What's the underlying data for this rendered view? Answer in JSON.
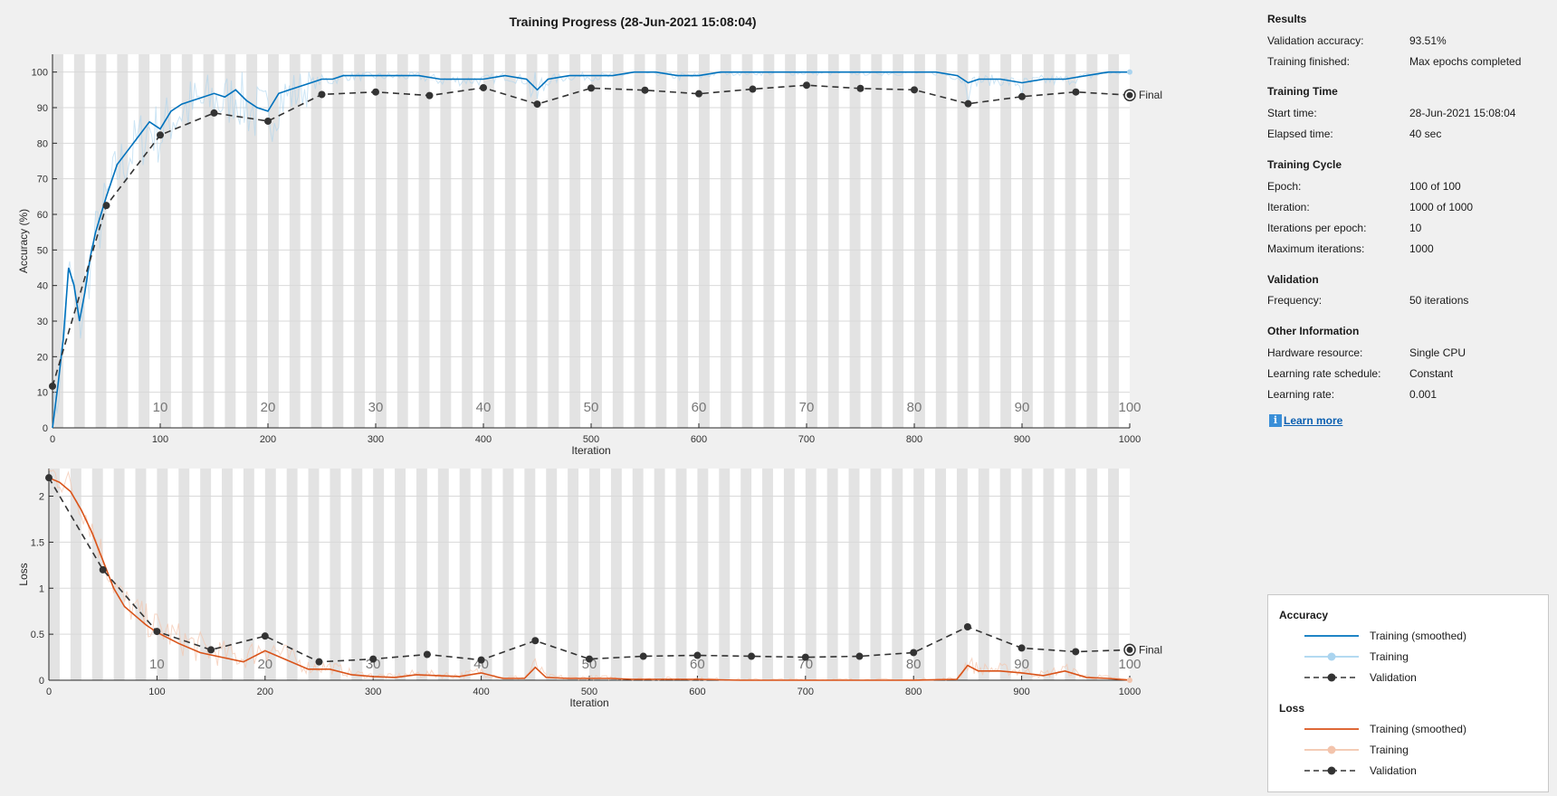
{
  "title": "Training Progress (28-Jun-2021 15:08:04)",
  "chart_data": [
    {
      "type": "line",
      "id": "accuracy",
      "ylabel": "Accuracy (%)",
      "xlabel": "Iteration",
      "xlim": [
        0,
        1000
      ],
      "ylim": [
        0,
        105
      ],
      "xticks": [
        0,
        100,
        200,
        300,
        400,
        500,
        600,
        700,
        800,
        900,
        1000
      ],
      "yticks": [
        0,
        10,
        20,
        30,
        40,
        50,
        60,
        70,
        80,
        90,
        100
      ],
      "epoch_labels": [
        "10",
        "20",
        "30",
        "40",
        "50",
        "60",
        "70",
        "80",
        "90",
        "100"
      ],
      "final_label": "Final",
      "series": [
        {
          "name": "Training (smoothed)",
          "x": [
            0,
            5,
            10,
            15,
            20,
            25,
            30,
            35,
            40,
            45,
            50,
            60,
            70,
            80,
            90,
            100,
            110,
            120,
            130,
            140,
            150,
            160,
            170,
            180,
            190,
            200,
            210,
            220,
            230,
            240,
            250,
            260,
            270,
            280,
            290,
            300,
            320,
            340,
            360,
            380,
            400,
            420,
            440,
            450,
            460,
            480,
            500,
            520,
            540,
            560,
            580,
            600,
            620,
            640,
            660,
            680,
            700,
            720,
            740,
            760,
            780,
            800,
            820,
            840,
            850,
            860,
            880,
            900,
            920,
            940,
            960,
            980,
            1000
          ],
          "values": [
            0,
            12,
            25,
            45,
            40,
            30,
            38,
            48,
            55,
            60,
            65,
            74,
            78,
            82,
            86,
            84,
            89,
            91,
            92,
            93,
            94,
            93,
            95,
            92,
            90,
            89,
            94,
            95,
            96,
            97,
            98,
            98,
            99,
            99,
            99,
            99,
            99,
            99,
            98,
            98,
            98,
            99,
            98,
            95,
            98,
            99,
            99,
            99,
            100,
            100,
            99,
            99,
            100,
            100,
            100,
            100,
            100,
            100,
            100,
            100,
            100,
            100,
            100,
            99,
            97,
            98,
            98,
            97,
            98,
            98,
            99,
            100,
            100
          ]
        },
        {
          "name": "Validation",
          "x": [
            0,
            50,
            100,
            150,
            200,
            250,
            300,
            350,
            400,
            450,
            500,
            550,
            600,
            650,
            700,
            750,
            800,
            850,
            900,
            950,
            1000
          ],
          "values": [
            11.7,
            62.5,
            82.3,
            88.5,
            86.2,
            93.7,
            94.4,
            93.4,
            95.6,
            91.0,
            95.5,
            94.9,
            93.9,
            95.2,
            96.3,
            95.4,
            95.0,
            91.1,
            93.1,
            94.4,
            93.51
          ]
        }
      ]
    },
    {
      "type": "line",
      "id": "loss",
      "ylabel": "Loss",
      "xlabel": "Iteration",
      "xlim": [
        0,
        1000
      ],
      "ylim": [
        0,
        2.3
      ],
      "xticks": [
        0,
        100,
        200,
        300,
        400,
        500,
        600,
        700,
        800,
        900,
        1000
      ],
      "yticks": [
        0,
        0.5,
        1,
        1.5,
        2
      ],
      "epoch_labels": [
        "10",
        "20",
        "30",
        "40",
        "50",
        "60",
        "70",
        "80",
        "90",
        "100"
      ],
      "final_label": "Final",
      "series": [
        {
          "name": "Training (smoothed)",
          "x": [
            0,
            10,
            20,
            30,
            40,
            50,
            60,
            70,
            80,
            90,
            100,
            120,
            140,
            160,
            180,
            200,
            220,
            240,
            260,
            280,
            300,
            320,
            340,
            360,
            380,
            400,
            420,
            440,
            450,
            460,
            480,
            500,
            520,
            540,
            560,
            580,
            600,
            640,
            680,
            720,
            760,
            800,
            840,
            850,
            860,
            880,
            900,
            920,
            940,
            960,
            980,
            1000
          ],
          "values": [
            2.2,
            2.15,
            2.05,
            1.85,
            1.6,
            1.3,
            1.0,
            0.8,
            0.7,
            0.6,
            0.52,
            0.4,
            0.3,
            0.25,
            0.2,
            0.32,
            0.22,
            0.12,
            0.12,
            0.06,
            0.04,
            0.03,
            0.06,
            0.05,
            0.04,
            0.08,
            0.02,
            0.02,
            0.14,
            0.03,
            0.02,
            0.02,
            0.02,
            0.01,
            0.01,
            0.01,
            0.01,
            0.0,
            0.0,
            0.0,
            0.0,
            0.0,
            0.01,
            0.16,
            0.1,
            0.1,
            0.08,
            0.05,
            0.1,
            0.03,
            0.02,
            0.0
          ]
        },
        {
          "name": "Validation",
          "x": [
            0,
            50,
            100,
            150,
            200,
            250,
            300,
            350,
            400,
            450,
            500,
            550,
            600,
            650,
            700,
            750,
            800,
            850,
            900,
            950,
            1000
          ],
          "values": [
            2.2,
            1.2,
            0.53,
            0.33,
            0.48,
            0.2,
            0.23,
            0.28,
            0.22,
            0.43,
            0.23,
            0.26,
            0.27,
            0.26,
            0.25,
            0.26,
            0.3,
            0.58,
            0.35,
            0.31,
            0.33
          ]
        }
      ]
    }
  ],
  "info": {
    "results_header": "Results",
    "val_acc_label": "Validation accuracy:",
    "val_acc_value": "93.51%",
    "finished_label": "Training finished:",
    "finished_value": "Max epochs completed",
    "time_header": "Training Time",
    "start_label": "Start time:",
    "start_value": "28-Jun-2021 15:08:04",
    "elapsed_label": "Elapsed time:",
    "elapsed_value": "40 sec",
    "cycle_header": "Training Cycle",
    "epoch_label": "Epoch:",
    "epoch_value": "100 of 100",
    "iter_label": "Iteration:",
    "iter_value": "1000 of 1000",
    "ipe_label": "Iterations per epoch:",
    "ipe_value": "10",
    "maxit_label": "Maximum iterations:",
    "maxit_value": "1000",
    "validation_header": "Validation",
    "freq_label": "Frequency:",
    "freq_value": "50 iterations",
    "other_header": "Other Information",
    "hw_label": "Hardware resource:",
    "hw_value": "Single CPU",
    "lrs_label": "Learning rate schedule:",
    "lrs_value": "Constant",
    "lr_label": "Learning rate:",
    "lr_value": "0.001",
    "learn_more": "Learn more"
  },
  "legend": {
    "accuracy_header": "Accuracy",
    "acc_smoothed": "Training (smoothed)",
    "acc_training": "Training",
    "acc_validation": "Validation",
    "loss_header": "Loss",
    "loss_smoothed": "Training (smoothed)",
    "loss_training": "Training",
    "loss_validation": "Validation"
  },
  "colors": {
    "acc_line": "#0072bd",
    "acc_raw": "#aad4ef",
    "loss_line": "#d95319",
    "loss_raw": "#f3c4ac",
    "validation": "#333333",
    "epoch_band": "#e3e3e3",
    "grid": "#d9d9d9"
  }
}
